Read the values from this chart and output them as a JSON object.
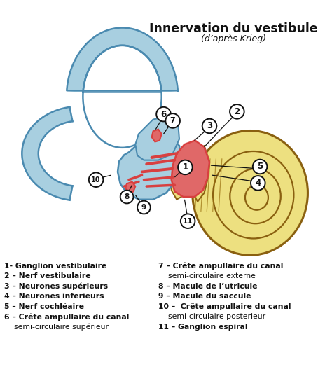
{
  "title": "Innervation du vestibule",
  "subtitle": "(d’après Krieg)",
  "bg_color": "#ffffff",
  "blue_fill": "#a8cfe0",
  "blue_edge": "#4a8ab0",
  "yellow_fill": "#ede080",
  "yellow_dark": "#c8a020",
  "yellow_edge": "#8a6010",
  "red_fill": "#d84040",
  "red_light": "#e06868",
  "black": "#111111",
  "legend_left": [
    "1- Ganglion vestibulaire",
    "2 – Nerf vestibulaire",
    "3 – Neurones supérieurs",
    "4 – Neurones inferieurs",
    "5 – Nerf cochléaire",
    "6 – Crête ampullaire du canal",
    "    semi-circulaire supérieur"
  ],
  "legend_right": [
    "7 – Crête ampullaire du canal",
    "    semi-circulaire externe",
    "8 – Macule de l’utricule",
    "9 – Macule du saccule",
    "10 –  Crête ampullaire du canal",
    "    semi-circulaire posterieur",
    "11 – Ganglion espiral"
  ]
}
